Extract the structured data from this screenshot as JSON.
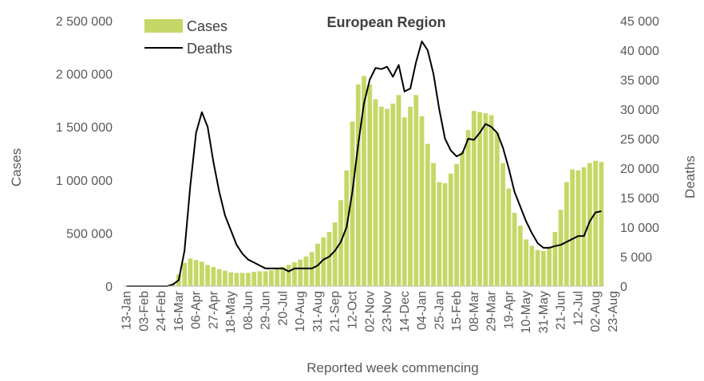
{
  "chart_data": {
    "type": "bar+line",
    "title": "European Region",
    "xlabel": "Reported week commencing",
    "ylabel_left": "Cases",
    "ylabel_right": "Deaths",
    "ylim_left": [
      0,
      2500000
    ],
    "ylim_right": [
      0,
      45000
    ],
    "yticks_left": [
      "0",
      "500 000",
      "1 000 000",
      "1 500 000",
      "2 000 000",
      "2 500 000"
    ],
    "yticks_right": [
      "0",
      "5 000",
      "10 000",
      "15 000",
      "20 000",
      "25 000",
      "30 000",
      "35 000",
      "40 000",
      "45 000"
    ],
    "legend": {
      "placement": "top-left",
      "entries": [
        "Cases",
        "Deaths"
      ]
    },
    "colors": {
      "cases": "#c5d867",
      "deaths": "#000000",
      "axis": "#bfbfbf",
      "text": "#595959"
    },
    "x_tick_labels": [
      "13-Jan",
      "03-Feb",
      "24-Feb",
      "16-Mar",
      "06-Apr",
      "27-Apr",
      "18-May",
      "08-Jun",
      "29-Jun",
      "20-Jul",
      "10-Aug",
      "31-Aug",
      "21-Sep",
      "12-Oct",
      "02-Nov",
      "23-Nov",
      "14-Dec",
      "04-Jan",
      "25-Jan",
      "15-Feb",
      "08-Mar",
      "29-Mar",
      "19-Apr",
      "10-May",
      "31-May",
      "21-Jun",
      "12-Jul",
      "02-Aug",
      "23-Aug"
    ],
    "x_tick_weeks": [
      0,
      3,
      6,
      9,
      12,
      15,
      18,
      21,
      24,
      27,
      30,
      33,
      36,
      39,
      42,
      45,
      48,
      51,
      54,
      57,
      60,
      63,
      66,
      69,
      72,
      75,
      78,
      81,
      84
    ],
    "series": [
      {
        "name": "Cases",
        "type": "bar",
        "values": [
          0,
          0,
          0,
          0,
          0,
          0,
          0,
          5000,
          20000,
          110000,
          220000,
          260000,
          245000,
          230000,
          200000,
          180000,
          160000,
          145000,
          130000,
          125000,
          125000,
          125000,
          135000,
          140000,
          140000,
          150000,
          160000,
          180000,
          200000,
          225000,
          250000,
          280000,
          320000,
          400000,
          460000,
          510000,
          600000,
          810000,
          1090000,
          1550000,
          1900000,
          1980000,
          1900000,
          1760000,
          1690000,
          1670000,
          1720000,
          1800000,
          1590000,
          1690000,
          1800000,
          1600000,
          1340000,
          1160000,
          980000,
          970000,
          1060000,
          1150000,
          1270000,
          1470000,
          1650000,
          1640000,
          1630000,
          1610000,
          1450000,
          1160000,
          920000,
          690000,
          570000,
          440000,
          380000,
          340000,
          330000,
          370000,
          510000,
          720000,
          980000,
          1100000,
          1090000,
          1120000,
          1160000,
          1180000,
          1170000
        ]
      },
      {
        "name": "Deaths",
        "type": "line",
        "values": [
          0,
          0,
          0,
          0,
          0,
          0,
          0,
          0,
          300,
          1000,
          6000,
          17000,
          26000,
          29500,
          27000,
          21000,
          16000,
          12000,
          9500,
          7000,
          5500,
          4500,
          4000,
          3500,
          3000,
          3000,
          3000,
          3000,
          2500,
          3000,
          3000,
          3000,
          3000,
          3500,
          4500,
          5000,
          6000,
          7500,
          10000,
          16000,
          24000,
          31000,
          35000,
          37000,
          36800,
          37200,
          35500,
          37500,
          33000,
          33500,
          38000,
          41500,
          40000,
          36000,
          30000,
          25000,
          23000,
          22000,
          22500,
          25000,
          24800,
          26000,
          27500,
          27000,
          26000,
          23500,
          20000,
          16000,
          13500,
          11000,
          9000,
          7300,
          6500,
          6500,
          6800,
          7000,
          7500,
          8000,
          8500,
          8500,
          11000,
          12500,
          12700
        ]
      }
    ]
  }
}
